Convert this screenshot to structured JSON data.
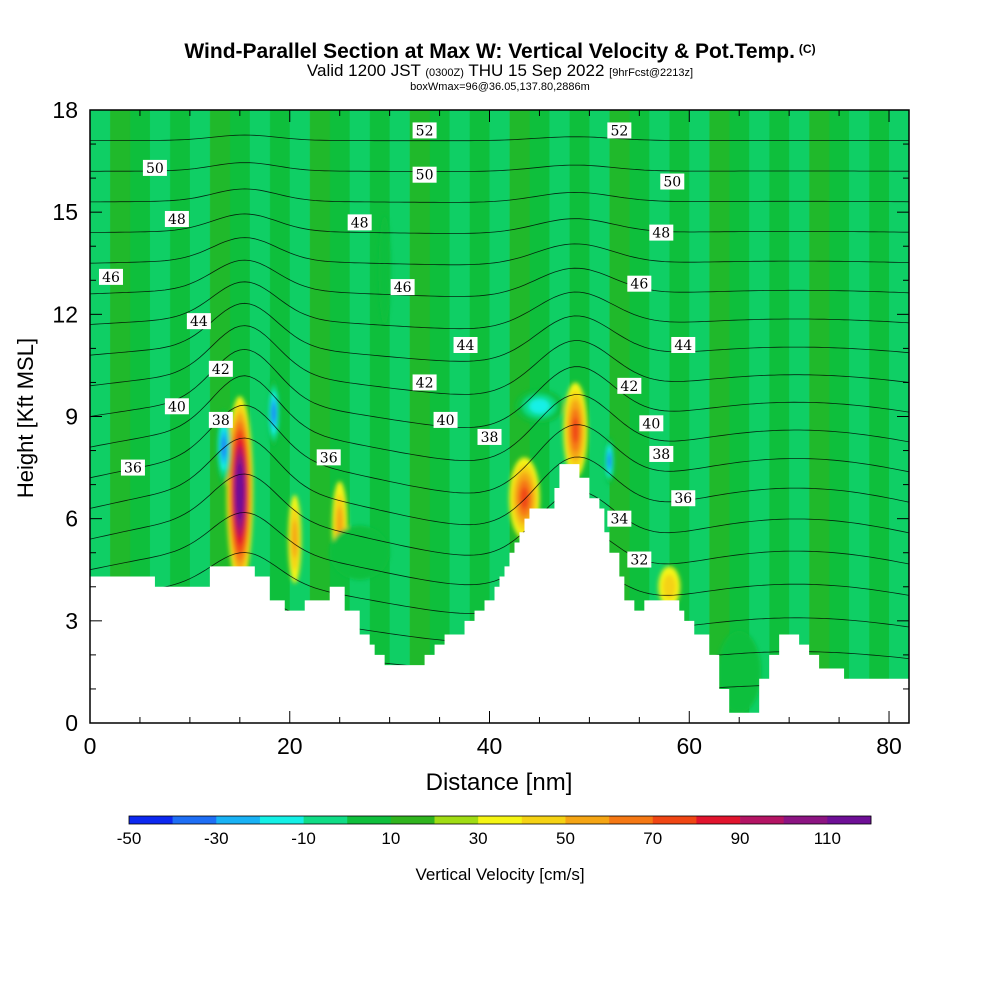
{
  "title": {
    "main": "Wind-Parallel Section at Max W: Vertical Velocity & Pot.Temp.",
    "copyright": "(C)",
    "valid_prefix": "Valid 1200 JST",
    "valid_utc": "(0300Z)",
    "valid_date": "THU 15 Sep 2022",
    "forecast": "[9hrFcst@2213z]",
    "box_info": "boxWmax=96@36.05,137.80,2886m"
  },
  "chart_data": {
    "type": "heatmap",
    "xlabel": "Distance [nm]",
    "ylabel": "Height [Kft MSL]",
    "xlim": [
      0,
      82
    ],
    "ylim": [
      0,
      18
    ],
    "x_ticks": [
      0,
      20,
      40,
      60,
      80
    ],
    "y_ticks": [
      0,
      3,
      6,
      9,
      12,
      15,
      18
    ],
    "terrain_profile_kft": [
      [
        0,
        4.3
      ],
      [
        6.5,
        4.3
      ],
      [
        6.5,
        4.0
      ],
      [
        12,
        4.0
      ],
      [
        12,
        4.6
      ],
      [
        16.5,
        4.6
      ],
      [
        16.5,
        4.3
      ],
      [
        18,
        4.3
      ],
      [
        18,
        3.6
      ],
      [
        19.5,
        3.6
      ],
      [
        19.5,
        3.3
      ],
      [
        21.5,
        3.3
      ],
      [
        21.5,
        3.6
      ],
      [
        24,
        3.6
      ],
      [
        24,
        4.0
      ],
      [
        25.5,
        4.0
      ],
      [
        25.5,
        3.3
      ],
      [
        27,
        3.3
      ],
      [
        27,
        2.6
      ],
      [
        28,
        2.6
      ],
      [
        28,
        2.3
      ],
      [
        28.5,
        2.3
      ],
      [
        28.5,
        2.0
      ],
      [
        29.5,
        2.0
      ],
      [
        29.5,
        1.7
      ],
      [
        33.5,
        1.7
      ],
      [
        33.5,
        2.0
      ],
      [
        34.5,
        2.0
      ],
      [
        34.5,
        2.3
      ],
      [
        35.5,
        2.3
      ],
      [
        35.5,
        2.6
      ],
      [
        37.5,
        2.6
      ],
      [
        37.5,
        3.0
      ],
      [
        38.5,
        3.0
      ],
      [
        38.5,
        3.3
      ],
      [
        39.5,
        3.3
      ],
      [
        39.5,
        3.6
      ],
      [
        40.5,
        3.6
      ],
      [
        40.5,
        4.0
      ],
      [
        41,
        4.0
      ],
      [
        41,
        4.3
      ],
      [
        41.5,
        4.3
      ],
      [
        41.5,
        4.6
      ],
      [
        42,
        4.6
      ],
      [
        42,
        5.0
      ],
      [
        42.5,
        5.0
      ],
      [
        42.5,
        5.3
      ],
      [
        43,
        5.3
      ],
      [
        43,
        5.6
      ],
      [
        43.5,
        5.6
      ],
      [
        43.5,
        6.0
      ],
      [
        44,
        6.0
      ],
      [
        44,
        6.3
      ],
      [
        46.5,
        6.3
      ],
      [
        46.5,
        6.9
      ],
      [
        47,
        6.9
      ],
      [
        47,
        7.6
      ],
      [
        49,
        7.6
      ],
      [
        49,
        7.2
      ],
      [
        50,
        7.2
      ],
      [
        50,
        6.6
      ],
      [
        51,
        6.6
      ],
      [
        51,
        6.3
      ],
      [
        51.5,
        6.3
      ],
      [
        51.5,
        5.6
      ],
      [
        52,
        5.6
      ],
      [
        52,
        5.0
      ],
      [
        53,
        5.0
      ],
      [
        53,
        4.3
      ],
      [
        53.5,
        4.3
      ],
      [
        53.5,
        3.6
      ],
      [
        54.5,
        3.6
      ],
      [
        54.5,
        3.3
      ],
      [
        55.5,
        3.3
      ],
      [
        55.5,
        3.6
      ],
      [
        59,
        3.6
      ],
      [
        59,
        3.3
      ],
      [
        59.5,
        3.3
      ],
      [
        59.5,
        3.0
      ],
      [
        60.5,
        3.0
      ],
      [
        60.5,
        2.6
      ],
      [
        62,
        2.6
      ],
      [
        62,
        2.0
      ],
      [
        63,
        2.0
      ],
      [
        63,
        1.0
      ],
      [
        64,
        1.0
      ],
      [
        64,
        0.3
      ],
      [
        67,
        0.3
      ],
      [
        67,
        1.3
      ],
      [
        68,
        1.3
      ],
      [
        68,
        2.0
      ],
      [
        69,
        2.0
      ],
      [
        69,
        2.6
      ],
      [
        71,
        2.6
      ],
      [
        71,
        2.3
      ],
      [
        72,
        2.3
      ],
      [
        72,
        2.0
      ],
      [
        73,
        2.0
      ],
      [
        73,
        1.6
      ],
      [
        75.5,
        1.6
      ],
      [
        75.5,
        1.3
      ],
      [
        82,
        1.3
      ]
    ],
    "contour_labels": [
      {
        "value": "52",
        "x": 33.5,
        "y": 17.4
      },
      {
        "value": "52",
        "x": 53,
        "y": 17.4
      },
      {
        "value": "50",
        "x": 6.5,
        "y": 16.3
      },
      {
        "value": "50",
        "x": 33.5,
        "y": 16.1
      },
      {
        "value": "50",
        "x": 58.3,
        "y": 15.9
      },
      {
        "value": "48",
        "x": 8.7,
        "y": 14.8
      },
      {
        "value": "48",
        "x": 27,
        "y": 14.7
      },
      {
        "value": "48",
        "x": 57.2,
        "y": 14.4
      },
      {
        "value": "46",
        "x": 2.1,
        "y": 13.1
      },
      {
        "value": "46",
        "x": 31.3,
        "y": 12.8
      },
      {
        "value": "46",
        "x": 55,
        "y": 12.9
      },
      {
        "value": "44",
        "x": 10.9,
        "y": 11.8
      },
      {
        "value": "44",
        "x": 37.6,
        "y": 11.1
      },
      {
        "value": "44",
        "x": 59.4,
        "y": 11.1
      },
      {
        "value": "42",
        "x": 13.1,
        "y": 10.4
      },
      {
        "value": "42",
        "x": 33.5,
        "y": 10.0
      },
      {
        "value": "42",
        "x": 54,
        "y": 9.9
      },
      {
        "value": "40",
        "x": 8.7,
        "y": 9.3
      },
      {
        "value": "40",
        "x": 35.6,
        "y": 8.9
      },
      {
        "value": "40",
        "x": 56.2,
        "y": 8.8
      },
      {
        "value": "38",
        "x": 13.1,
        "y": 8.9
      },
      {
        "value": "38",
        "x": 40,
        "y": 8.4
      },
      {
        "value": "38",
        "x": 57.2,
        "y": 7.9
      },
      {
        "value": "36",
        "x": 4.3,
        "y": 7.5
      },
      {
        "value": "36",
        "x": 23.9,
        "y": 7.8
      },
      {
        "value": "36",
        "x": 59.4,
        "y": 6.6
      },
      {
        "value": "34",
        "x": 53,
        "y": 6.0
      },
      {
        "value": "32",
        "x": 55,
        "y": 4.8
      }
    ],
    "w_features": [
      {
        "x": 15,
        "y": 6.8,
        "w_cms": 120,
        "rx": 1.2,
        "ry": 2.8
      },
      {
        "x": 13.4,
        "y": 8.1,
        "w_cms": -40,
        "rx": 0.6,
        "ry": 1.1
      },
      {
        "x": 18.4,
        "y": 9.1,
        "w_cms": -40,
        "rx": 0.5,
        "ry": 1.0
      },
      {
        "x": 20.5,
        "y": 5.4,
        "w_cms": 40,
        "rx": 0.6,
        "ry": 1.3
      },
      {
        "x": 25,
        "y": 5.8,
        "w_cms": 40,
        "rx": 0.7,
        "ry": 1.3
      },
      {
        "x": 43.5,
        "y": 6.6,
        "w_cms": 60,
        "rx": 1.4,
        "ry": 1.2
      },
      {
        "x": 48.6,
        "y": 8.6,
        "w_cms": 60,
        "rx": 1.1,
        "ry": 1.4
      },
      {
        "x": 52,
        "y": 7.7,
        "w_cms": -40,
        "rx": 0.4,
        "ry": 0.7
      },
      {
        "x": 58,
        "y": 4.0,
        "w_cms": 35,
        "rx": 1.0,
        "ry": 0.6
      },
      {
        "x": 45,
        "y": 9.3,
        "w_cms": -25,
        "rx": 2.0,
        "ry": 0.5
      },
      {
        "x": 65,
        "y": 1.5,
        "w_cms": -10,
        "rx": 2.2,
        "ry": 1.2
      },
      {
        "x": 29.5,
        "y": 13.3,
        "w_cms": -10,
        "rx": 0.6,
        "ry": 1.6
      },
      {
        "x": 27,
        "y": 5.0,
        "w_cms": -10,
        "rx": 3.0,
        "ry": 0.8
      }
    ],
    "colorbar": {
      "label": "Vertical Velocity [cm/s]",
      "tick_labels": [
        "-50",
        "-30",
        "-10",
        "10",
        "30",
        "50",
        "70",
        "90",
        "110"
      ],
      "colors": [
        "#0c28f0",
        "#1e6ef5",
        "#19b2f5",
        "#14f0e6",
        "#10dc86",
        "#0fbf3c",
        "#30b41e",
        "#a0dc14",
        "#f5f514",
        "#f5d214",
        "#f5a514",
        "#f57814",
        "#f04614",
        "#e1142d",
        "#b41464",
        "#8c1482",
        "#6e0f96"
      ]
    }
  }
}
